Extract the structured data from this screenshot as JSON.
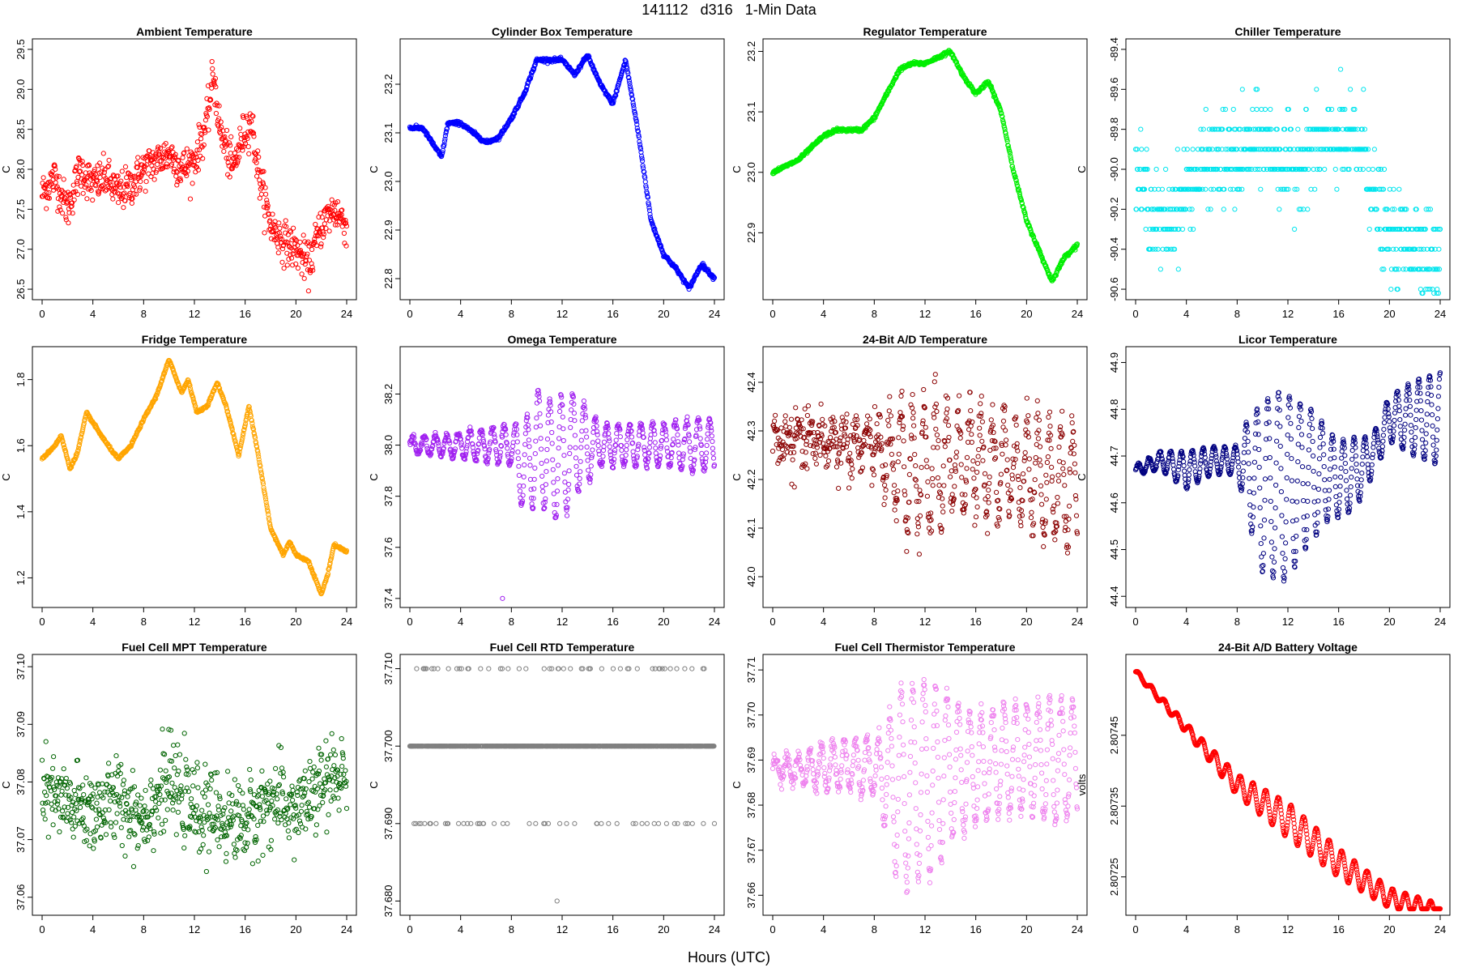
{
  "page": {
    "title": "141112   d316   1-Min Data",
    "xlabel": "Hours (UTC)"
  },
  "chart_data": [
    {
      "type": "scatter",
      "title": "Ambient Temperature",
      "ylabel": "C",
      "color": "#ff0000",
      "xlim": [
        0,
        24
      ],
      "ylim": [
        26.45,
        29.55
      ],
      "yticks": [
        "26.5",
        "27.0",
        "27.5",
        "28.0",
        "28.5",
        "29.0",
        "29.5"
      ],
      "noise": 0.28,
      "x": [
        0,
        1,
        2,
        3,
        4,
        5,
        6,
        7,
        8,
        9,
        10,
        11,
        12,
        13,
        13.5,
        14,
        15,
        16,
        16.5,
        17,
        18,
        19,
        20,
        21,
        22,
        23,
        24
      ],
      "y": [
        27.7,
        27.9,
        27.5,
        28.0,
        27.8,
        27.9,
        27.7,
        27.8,
        28.0,
        28.1,
        28.2,
        28.0,
        28.1,
        28.6,
        29.2,
        28.5,
        28.0,
        28.5,
        28.6,
        28.0,
        27.3,
        27.1,
        27.0,
        26.8,
        27.3,
        27.5,
        27.3
      ]
    },
    {
      "type": "scatter",
      "title": "Cylinder Box Temperature",
      "ylabel": "C",
      "color": "#0000ff",
      "xlim": [
        0,
        24
      ],
      "ylim": [
        22.77,
        23.28
      ],
      "yticks": [
        "22.8",
        "22.9",
        "23.0",
        "23.1",
        "23.2"
      ],
      "noise": 0.004,
      "x": [
        0,
        1,
        2,
        2.5,
        3,
        4,
        5,
        6,
        7,
        8,
        9,
        10,
        11,
        12,
        13,
        14,
        15,
        16,
        17,
        18,
        19,
        20,
        21,
        22,
        23,
        24
      ],
      "y": [
        23.11,
        23.11,
        23.07,
        23.05,
        23.12,
        23.12,
        23.1,
        23.08,
        23.09,
        23.13,
        23.18,
        23.25,
        23.25,
        23.25,
        23.22,
        23.26,
        23.2,
        23.16,
        23.25,
        23.1,
        22.92,
        22.85,
        22.82,
        22.78,
        22.83,
        22.8
      ]
    },
    {
      "type": "scatter",
      "title": "Regulator Temperature",
      "ylabel": "C",
      "color": "#00ee00",
      "xlim": [
        0,
        24
      ],
      "ylim": [
        22.8,
        23.21
      ],
      "yticks": [
        "22.9",
        "23.0",
        "23.1",
        "23.2"
      ],
      "noise": 0.003,
      "x": [
        0,
        1,
        2,
        3,
        4,
        5,
        6,
        7,
        8,
        9,
        10,
        11,
        12,
        13,
        14,
        15,
        16,
        17,
        18,
        19,
        20,
        21,
        22,
        23,
        24
      ],
      "y": [
        23.0,
        23.01,
        23.02,
        23.04,
        23.06,
        23.07,
        23.07,
        23.07,
        23.09,
        23.13,
        23.17,
        23.18,
        23.18,
        23.19,
        23.2,
        23.16,
        23.13,
        23.15,
        23.1,
        23.0,
        22.92,
        22.87,
        22.82,
        22.86,
        22.88
      ]
    },
    {
      "type": "scatter",
      "title": "Chiller Temperature",
      "ylabel": "C",
      "color": "#00e5ee",
      "xlim": [
        0,
        24
      ],
      "ylim": [
        -90.62,
        -89.38
      ],
      "yticks": [
        "-90.6",
        "-90.4",
        "-90.2",
        "-90.0",
        "-89.8",
        "-89.6",
        "-89.4"
      ],
      "noise": 0.25,
      "quant": 0.1,
      "x": [
        0,
        2,
        4,
        6,
        8,
        10,
        12,
        14,
        16,
        18,
        19,
        20,
        22,
        24
      ],
      "y": [
        -90.0,
        -90.3,
        -90.1,
        -89.95,
        -89.95,
        -89.85,
        -90.0,
        -89.9,
        -89.85,
        -89.9,
        -90.2,
        -90.35,
        -90.35,
        -90.5
      ]
    },
    {
      "type": "scatter",
      "title": "Fridge Temperature",
      "ylabel": "C",
      "color": "#ffa500",
      "xlim": [
        0,
        24
      ],
      "ylim": [
        1.13,
        1.88
      ],
      "yticks": [
        "1.2",
        "1.4",
        "1.6",
        "1.8"
      ],
      "noise": 0.004,
      "x": [
        0,
        1,
        1.5,
        2.2,
        2.8,
        3.5,
        4.5,
        5.2,
        6,
        7,
        8,
        9,
        10,
        11,
        11.5,
        12.2,
        13,
        13.8,
        14.5,
        15.5,
        16.3,
        17,
        18,
        19,
        19.5,
        20,
        21,
        22,
        22.5,
        23,
        24
      ],
      "y": [
        1.56,
        1.6,
        1.63,
        1.53,
        1.58,
        1.7,
        1.64,
        1.6,
        1.56,
        1.6,
        1.68,
        1.75,
        1.86,
        1.76,
        1.8,
        1.7,
        1.72,
        1.79,
        1.72,
        1.57,
        1.72,
        1.58,
        1.35,
        1.27,
        1.31,
        1.27,
        1.25,
        1.15,
        1.21,
        1.3,
        1.28
      ]
    },
    {
      "type": "scatter",
      "title": "Omega Temperature",
      "ylabel": "C",
      "color": "#a020f0",
      "xlim": [
        0,
        24
      ],
      "ylim": [
        37.39,
        38.36
      ],
      "yticks": [
        "37.4",
        "37.6",
        "37.8",
        "38.0",
        "38.2"
      ],
      "noise": 0.015,
      "osc_period": 0.9,
      "x": [
        0,
        4,
        8,
        9,
        10,
        11,
        12,
        13,
        14,
        15,
        16,
        18,
        20,
        22,
        24
      ],
      "y": [
        38.0,
        38.0,
        38.0,
        37.9,
        38.0,
        37.95,
        37.95,
        38.0,
        38.0,
        38.0,
        38.0,
        38.0,
        38.0,
        38.0,
        38.0
      ],
      "amp": [
        0.03,
        0.05,
        0.08,
        0.18,
        0.22,
        0.22,
        0.25,
        0.2,
        0.15,
        0.08,
        0.08,
        0.08,
        0.08,
        0.1,
        0.1
      ],
      "outlier": [
        7.3,
        37.4
      ]
    },
    {
      "type": "scatter",
      "title": "24-Bit A/D Temperature",
      "ylabel": "C",
      "color": "#8b0000",
      "xlim": [
        0,
        24
      ],
      "ylim": [
        41.95,
        42.46
      ],
      "yticks": [
        "42.0",
        "42.1",
        "42.2",
        "42.3",
        "42.4"
      ],
      "noise": 0.06,
      "x": [
        0,
        4,
        8,
        10,
        12,
        14,
        16,
        18,
        20,
        22,
        24
      ],
      "y": [
        42.28,
        42.28,
        42.27,
        42.22,
        42.22,
        42.24,
        42.24,
        42.23,
        42.22,
        42.2,
        42.18
      ],
      "amp": [
        0.02,
        0.03,
        0.04,
        0.12,
        0.14,
        0.1,
        0.1,
        0.1,
        0.1,
        0.12,
        0.12
      ]
    },
    {
      "type": "scatter",
      "title": "Licor Temperature",
      "ylabel": "C",
      "color": "#000080",
      "xlim": [
        0,
        24
      ],
      "ylim": [
        44.39,
        44.92
      ],
      "yticks": [
        "44.4",
        "44.5",
        "44.6",
        "44.7",
        "44.8",
        "44.9"
      ],
      "noise": 0.003,
      "osc_period": 0.85,
      "x": [
        0,
        2,
        4,
        6,
        8,
        9,
        10,
        11,
        12,
        13,
        14,
        15,
        16,
        17,
        18,
        19,
        20,
        22,
        24
      ],
      "y": [
        44.67,
        44.69,
        44.67,
        44.69,
        44.69,
        44.67,
        44.63,
        44.64,
        44.63,
        44.65,
        44.66,
        44.66,
        44.65,
        44.66,
        44.68,
        44.72,
        44.78,
        44.78,
        44.78
      ],
      "amp": [
        0.01,
        0.02,
        0.04,
        0.03,
        0.03,
        0.12,
        0.18,
        0.2,
        0.2,
        0.16,
        0.14,
        0.1,
        0.08,
        0.08,
        0.06,
        0.04,
        0.05,
        0.08,
        0.1
      ]
    },
    {
      "type": "scatter",
      "title": "Fuel Cell MPT Temperature",
      "ylabel": "C",
      "color": "#006400",
      "xlim": [
        0,
        24
      ],
      "ylim": [
        37.058,
        37.101
      ],
      "yticks": [
        "37.06",
        "37.07",
        "37.08",
        "37.09",
        "37.10"
      ],
      "noise": 0.008,
      "x": [
        0,
        2,
        4,
        6,
        8,
        10,
        12,
        14,
        16,
        18,
        20,
        22,
        24
      ],
      "y": [
        37.078,
        37.076,
        37.075,
        37.077,
        37.074,
        37.08,
        37.075,
        37.074,
        37.073,
        37.077,
        37.075,
        37.079,
        37.082
      ]
    },
    {
      "type": "scatter",
      "title": "Fuel Cell RTD Temperature",
      "ylabel": "C",
      "color": "#808080",
      "xlim": [
        0,
        24
      ],
      "ylim": [
        37.679,
        37.711
      ],
      "yticks": [
        "37.680",
        "37.690",
        "37.700",
        "37.710"
      ],
      "levels": [
        37.7,
        37.69,
        37.71,
        37.68
      ],
      "level_probs": [
        0.86,
        0.07,
        0.07,
        0.0
      ],
      "outlier": [
        11.6,
        37.68
      ]
    },
    {
      "type": "scatter",
      "title": "Fuel Cell Thermistor Temperature",
      "ylabel": "C",
      "color": "#ee82ee",
      "xlim": [
        0,
        24
      ],
      "ylim": [
        37.657,
        37.712
      ],
      "yticks": [
        "37.66",
        "37.67",
        "37.68",
        "37.69",
        "37.70",
        "37.71"
      ],
      "noise": 0.002,
      "osc_period": 0.9,
      "x": [
        0,
        2,
        4,
        6,
        8,
        9,
        10,
        11,
        12,
        13,
        14,
        16,
        18,
        20,
        22,
        24
      ],
      "y": [
        37.688,
        37.688,
        37.688,
        37.689,
        37.688,
        37.686,
        37.684,
        37.684,
        37.686,
        37.686,
        37.688,
        37.688,
        37.69,
        37.69,
        37.69,
        37.69
      ],
      "amp": [
        0.002,
        0.003,
        0.005,
        0.006,
        0.006,
        0.012,
        0.022,
        0.022,
        0.022,
        0.02,
        0.016,
        0.012,
        0.012,
        0.012,
        0.014,
        0.014
      ]
    },
    {
      "type": "scatter",
      "title": "24-Bit A/D Battery Voltage",
      "ylabel": "volts",
      "color": "#ff0000",
      "xlim": [
        0,
        24
      ],
      "ylim": [
        2.807205,
        2.807555
      ],
      "yticks": [
        "2.80725",
        "2.80735",
        "2.80745"
      ],
      "noise": 8e-07,
      "osc_period": 1.0,
      "x": [
        0,
        4,
        8,
        12,
        16,
        20,
        24
      ],
      "y": [
        2.80754,
        2.80746,
        2.80738,
        2.80733,
        2.80727,
        2.80722,
        2.8072
      ],
      "amp": [
        3e-06,
        7e-06,
        1.5e-05,
        2.5e-05,
        2e-05,
        1.4e-05,
        1.2e-05
      ]
    }
  ]
}
